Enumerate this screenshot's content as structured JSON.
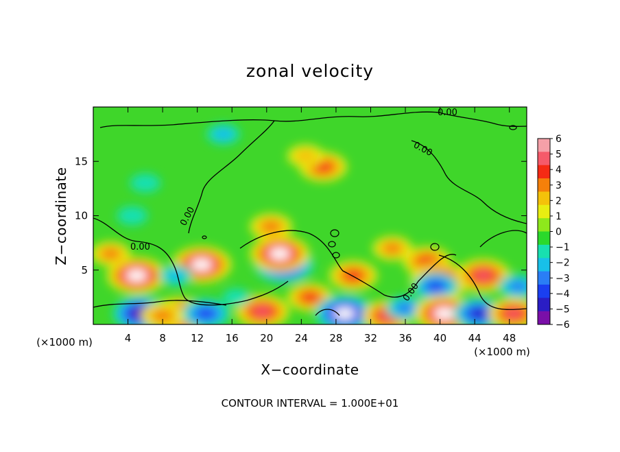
{
  "chart_data": {
    "type": "heatmap",
    "title": "zonal velocity",
    "xlabel": "X−coordinate",
    "ylabel": "Z−coordinate",
    "x_unit": "(×1000 m)",
    "x_unit_right": "(×1000 m)",
    "xlim": [
      0,
      50
    ],
    "ylim": [
      0,
      20
    ],
    "x_ticks": [
      4,
      8,
      12,
      16,
      20,
      24,
      28,
      32,
      36,
      40,
      44,
      48
    ],
    "x_tick_labels": [
      "4",
      "8",
      "12",
      "16",
      "20",
      "24",
      "28",
      "32",
      "36",
      "40",
      "44",
      "48"
    ],
    "y_ticks": [
      5,
      10,
      15
    ],
    "y_tick_labels": [
      "5",
      "10",
      "15"
    ],
    "colorbar": {
      "min": -6,
      "max": 6,
      "ticks": [
        6,
        5,
        4,
        3,
        2,
        1,
        0,
        -1,
        -2,
        -3,
        -4,
        -5,
        -6
      ],
      "tick_labels": [
        "6",
        "5",
        "4",
        "3",
        "2",
        "1",
        "0",
        "−1",
        "−2",
        "−3",
        "−4",
        "−5",
        "−6"
      ],
      "colors": [
        "#7a0fa8",
        "#2a1dc4",
        "#1a3ff0",
        "#2a7ef5",
        "#18c0e8",
        "#18e0b0",
        "#2bd92b",
        "#8ee81c",
        "#e8ee12",
        "#f4c20a",
        "#f5800a",
        "#f52a14",
        "#f55a6a",
        "#f5a0a8"
      ]
    },
    "contour_interval_text": "CONTOUR INTERVAL = 1.000E+01",
    "contour_labels": [
      "0.00",
      "0.00",
      "0.00",
      "0.00",
      "0.00",
      "0.00"
    ],
    "field_features": [
      {
        "x": 26.5,
        "z": 14.5,
        "value": 4.5
      },
      {
        "x": 24.5,
        "z": 15.5,
        "value": 2.5
      },
      {
        "x": 20.5,
        "z": 9.0,
        "value": 3.5
      },
      {
        "x": 15.0,
        "z": 17.5,
        "value": -2.0
      },
      {
        "x": 6.0,
        "z": 13.0,
        "value": -1.5
      },
      {
        "x": 4.5,
        "z": 10.0,
        "value": -1.5
      },
      {
        "x": 5.0,
        "z": 4.5,
        "value": 6.5
      },
      {
        "x": 12.5,
        "z": 5.5,
        "value": 6.5
      },
      {
        "x": 9.5,
        "z": 4.5,
        "value": -2.0
      },
      {
        "x": 22.0,
        "z": 5.5,
        "value": -6.5
      },
      {
        "x": 21.5,
        "z": 6.5,
        "value": 6.5
      },
      {
        "x": 30.0,
        "z": 4.5,
        "value": 4.5
      },
      {
        "x": 34.5,
        "z": 7.0,
        "value": 3.0
      },
      {
        "x": 38.5,
        "z": 5.8,
        "value": 4.5
      },
      {
        "x": 40.0,
        "z": 4.0,
        "value": 6.5
      },
      {
        "x": 39.5,
        "z": 3.5,
        "value": -4.0
      },
      {
        "x": 45.0,
        "z": 4.5,
        "value": 5.5
      },
      {
        "x": 49.0,
        "z": 3.5,
        "value": -3.0
      },
      {
        "x": 5.5,
        "z": 1.0,
        "value": -6.0
      },
      {
        "x": 10.0,
        "z": 0.8,
        "value": 6.5
      },
      {
        "x": 13.0,
        "z": 1.0,
        "value": -4.5
      },
      {
        "x": 19.5,
        "z": 1.2,
        "value": 5.5
      },
      {
        "x": 25.0,
        "z": 2.5,
        "value": 4.0
      },
      {
        "x": 29.0,
        "z": 1.0,
        "value": -6.5
      },
      {
        "x": 34.0,
        "z": 0.8,
        "value": 5.0
      },
      {
        "x": 36.0,
        "z": 1.5,
        "value": -3.0
      },
      {
        "x": 40.5,
        "z": 1.0,
        "value": 6.5
      },
      {
        "x": 44.5,
        "z": 1.0,
        "value": -5.0
      },
      {
        "x": 48.5,
        "z": 1.0,
        "value": 5.0
      },
      {
        "x": 2.0,
        "z": 6.5,
        "value": 3.0
      },
      {
        "x": 8.0,
        "z": 0.8,
        "value": 3.5
      },
      {
        "x": 16.5,
        "z": 2.5,
        "value": -1.0
      }
    ]
  }
}
